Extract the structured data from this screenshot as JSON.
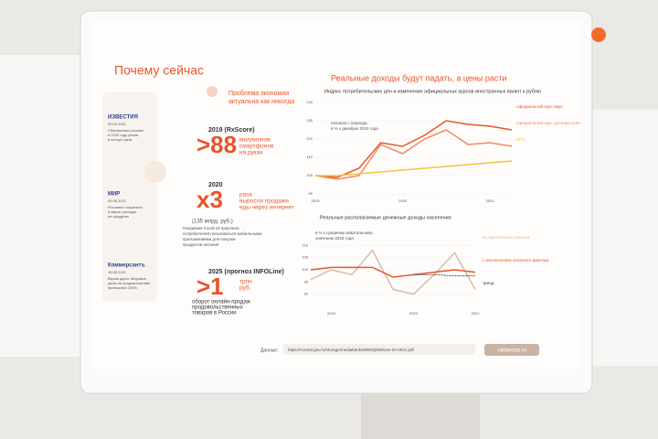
{
  "header": {
    "title": "Почему сейчас",
    "right_title": "Реальные доходы будут падать, а цены расти"
  },
  "problem": [
    "Проблема экономии",
    "актуальна как никогда"
  ],
  "news": [
    {
      "source": "ИЗВЕСТИЯ",
      "date": "30.03.2021",
      "lines": [
        "Сбережения россиян",
        "в 2020 году упали",
        "в четыре раза"
      ]
    },
    {
      "source": "МИР",
      "date": "09.06.2021",
      "lines": [
        "Россияне сократили",
        "в марте расходы",
        "на продукты"
      ]
    },
    {
      "source": "Коммерсантъ",
      "date": "16.05.2021",
      "lines": [
        "Взрыв дорог. Мировые",
        "цены на продовольствие",
        "превысили 200%"
      ]
    }
  ],
  "facts": [
    {
      "year": "2019 (RxScore)",
      "big": ">88",
      "lines": [
        "миллионов",
        "смартфонов",
        "на руках"
      ]
    },
    {
      "year": "2020",
      "big": "x3",
      "lines": [
        "раза",
        "выросли продажи",
        "еды через интернет"
      ],
      "sub": "(135 млрд. руб.)",
      "note": [
        "Пандемия Covid-19 приучила",
        "потребителей пользоваться мобильными",
        "приложениями для покупки",
        "продуктов питания"
      ]
    },
    {
      "year": "2025 (прогноз INFOLine)",
      "big": ">1",
      "lines": [
        "трлн",
        "руб."
      ],
      "note": [
        "оборот онлайн-продаж",
        "продовольственных",
        "товаров в России"
      ]
    }
  ],
  "charts": [
    {
      "type": "line",
      "title": "Индекс потребительских цен и изменение официальных курсов иностранных валют к рублю",
      "annotation": [
        "начиная с периода,",
        "в % к декабрю 2019 года"
      ],
      "categories": [
        "2019",
        null,
        null,
        null,
        "2020",
        null,
        null,
        null,
        "2021",
        null
      ],
      "ylim": [
        90,
        140
      ],
      "yticks": [
        90,
        100,
        110,
        120,
        130,
        140
      ],
      "series": [
        {
          "name": "официальный курс евро",
          "color": "#e8542a",
          "values": [
            100,
            99,
            104,
            118,
            116,
            122,
            130,
            128,
            127,
            125
          ]
        },
        {
          "name": "официальный курс доллара США",
          "color": "#f08a5d",
          "values": [
            100,
            98,
            100,
            117,
            112,
            120,
            125,
            117,
            118,
            116
          ]
        },
        {
          "name": "ИПЦ",
          "color": "#f5c242",
          "values": [
            100,
            100,
            101,
            102,
            103,
            104,
            105,
            106,
            107,
            108
          ]
        }
      ]
    },
    {
      "type": "line",
      "title": "Реальные располагаемые денежные доходы населения",
      "annotation": [
        "в % к среднему квартальному",
        "значению 2018 года"
      ],
      "categories": [
        null,
        "2019",
        null,
        null,
        null,
        "2020",
        null,
        null,
        "2021"
      ],
      "ylim": [
        85,
        115
      ],
      "yticks": [
        90,
        95,
        100,
        105,
        110
      ],
      "series": [
        {
          "name": "по фактическим данным",
          "color": "#d9b9a4",
          "values": [
            96,
            100,
            98,
            108,
            92,
            90,
            98,
            107,
            92
          ]
        },
        {
          "name": "с исключением сезонного фактора",
          "color": "#e8542a",
          "values": [
            100,
            101,
            101,
            101,
            97,
            98,
            99,
            100,
            99
          ]
        },
        {
          "name": "тренд",
          "color": "#333333",
          "values": [
            null,
            null,
            null,
            null,
            null,
            98,
            98,
            97.5,
            97.5
          ]
        }
      ]
    }
  ],
  "footer": {
    "label": "Данные:",
    "url": "https://rosstat.gov.ru/storage/mediabank/aRB3QKk8/osn-03-2021.pdf",
    "site": "radareda.ru"
  }
}
